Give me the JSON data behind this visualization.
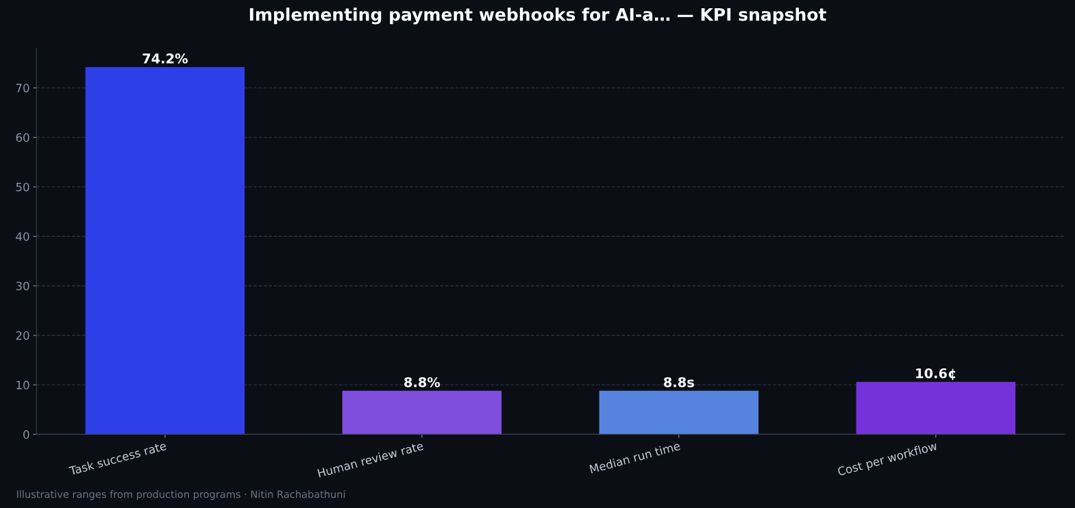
{
  "chart_data": {
    "type": "bar",
    "title": "Implementing payment webhooks for AI-a… — KPI snapshot",
    "categories": [
      "Task success rate",
      "Human review rate",
      "Median run time",
      "Cost per workflow"
    ],
    "values": [
      74.2,
      8.8,
      8.8,
      10.6
    ],
    "colors": [
      "#2e3fea",
      "#7f4edc",
      "#5683de",
      "#7433d9"
    ],
    "value_labels": [
      "74.2%",
      "8.8%",
      "8.8s",
      "10.6¢"
    ],
    "ylim": [
      0,
      78
    ],
    "yticks": [
      0,
      10,
      20,
      30,
      40,
      50,
      60,
      70
    ],
    "grid": "y",
    "annotations": [
      "Illustrative ranges from production programs · Nitin Rachabathuni"
    ]
  }
}
